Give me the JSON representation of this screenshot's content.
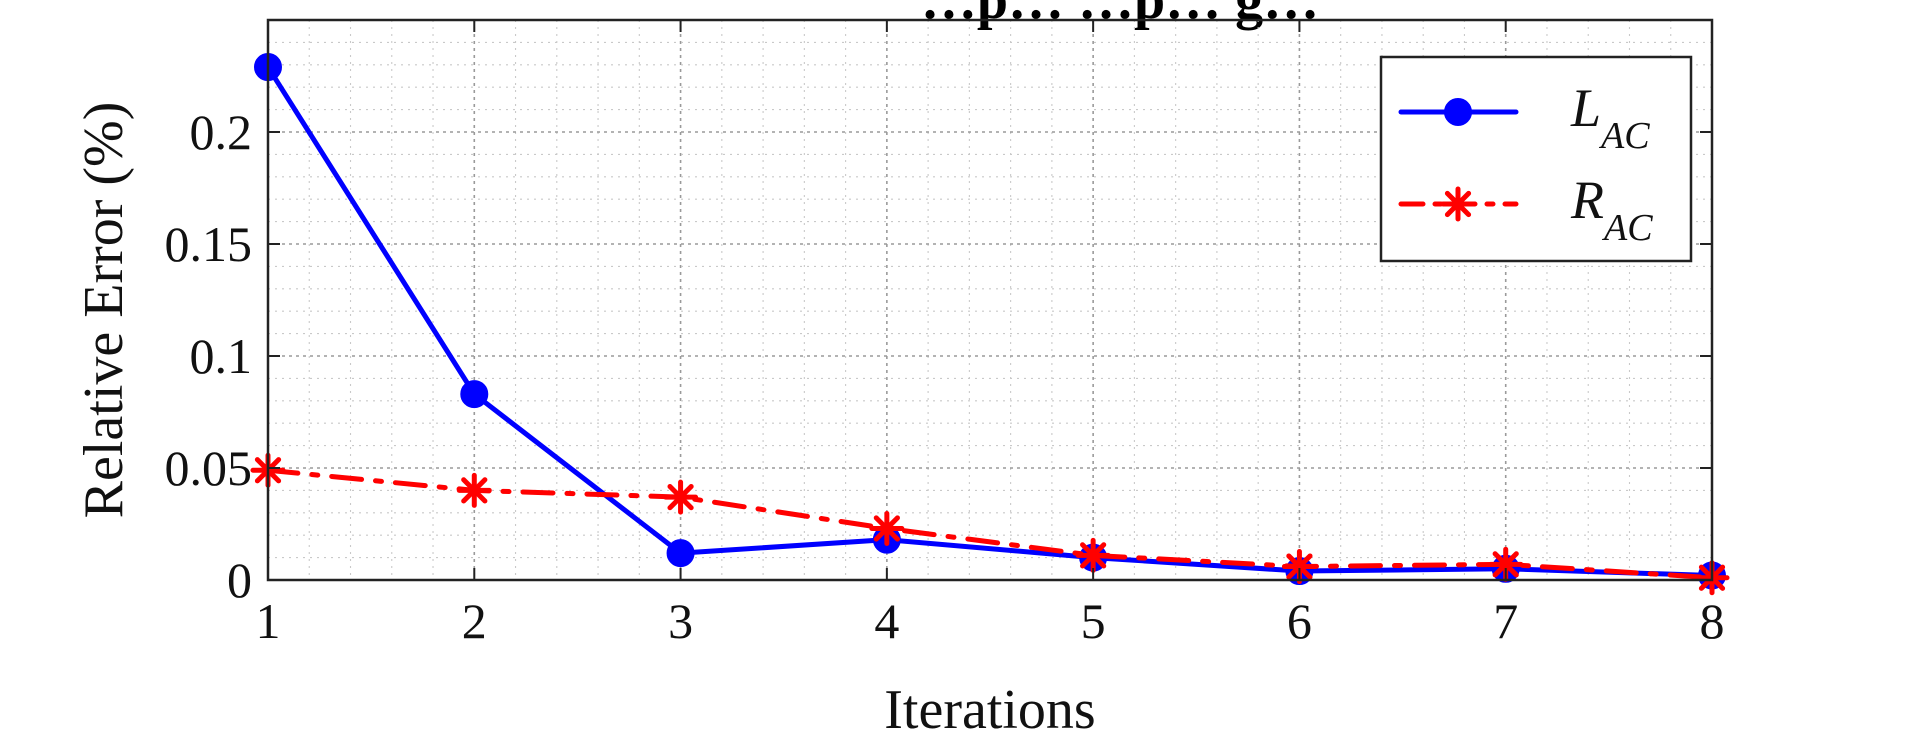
{
  "chart_data": {
    "type": "line",
    "title": "…p… …p… g…",
    "xlabel": "Iterations",
    "ylabel": "Relative Error (%)",
    "x": [
      1,
      2,
      3,
      4,
      5,
      6,
      7,
      8
    ],
    "xlim": [
      1,
      8
    ],
    "ylim": [
      0,
      0.25
    ],
    "xticks": [
      1,
      2,
      3,
      4,
      5,
      6,
      7,
      8
    ],
    "yticks": [
      0,
      0.05,
      0.1,
      0.15,
      0.2
    ],
    "ytick_labels": [
      "0",
      "0.05",
      "0.1",
      "0.15",
      "0.2"
    ],
    "grid": true,
    "minor_grid": true,
    "legend_position": "top-right",
    "series": [
      {
        "name": "L",
        "subscript": "AC",
        "color": "#0000ff",
        "line_style": "solid",
        "marker": "circle",
        "values": [
          0.229,
          0.083,
          0.012,
          0.018,
          0.01,
          0.004,
          0.005,
          0.002
        ]
      },
      {
        "name": "R",
        "subscript": "AC",
        "color": "#ff0000",
        "line_style": "dash-dot",
        "marker": "asterisk",
        "values": [
          0.049,
          0.04,
          0.037,
          0.023,
          0.011,
          0.006,
          0.007,
          0.001
        ]
      }
    ]
  }
}
